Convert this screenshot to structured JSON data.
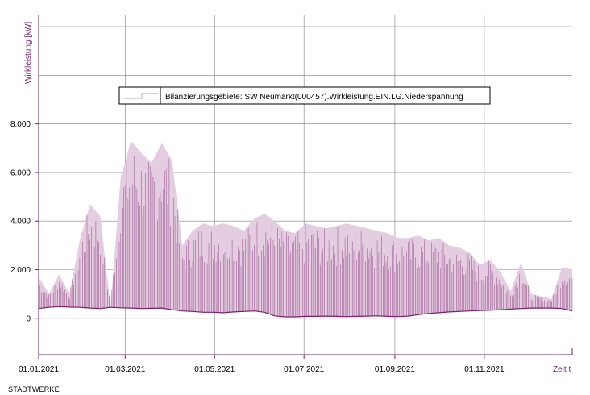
{
  "footer": {
    "text": "STADTWERKE"
  },
  "chart_data": {
    "type": "area",
    "title": "",
    "ylabel": "Wirkleistung [kW]",
    "xlabel": "Zeit t",
    "ylim": [
      -1500,
      12500
    ],
    "xlim": [
      "2021-01-01",
      "2021-12-31"
    ],
    "grid": true,
    "legend_position": "top-center",
    "y_ticks": [
      0,
      2000,
      4000,
      6000,
      8000
    ],
    "y_tick_labels": [
      "0",
      "2.000",
      "4.000",
      "6.000",
      "8.000"
    ],
    "x_ticks": [
      "2021-01-01",
      "2021-03-01",
      "2021-05-01",
      "2021-07-01",
      "2021-09-01",
      "2021-11-01"
    ],
    "x_tick_labels": [
      "01.01.2021",
      "01.03.2021",
      "01.05.2021",
      "01.07.2021",
      "01.09.2021",
      "01.11.2021"
    ],
    "colors": {
      "line": "#7a1f6e",
      "fill": "#e4cde0",
      "axis": "#7a1f6e",
      "grid": "#808080"
    },
    "series": [
      {
        "name": "Bilanzierungsgebiete: SW Neumarkt(000457).Wirkleistung.EIN.LG.Niederspannung",
        "x": [
          "2021-01-01",
          "2021-01-08",
          "2021-01-15",
          "2021-01-22",
          "2021-01-29",
          "2021-02-05",
          "2021-02-12",
          "2021-02-19",
          "2021-02-26",
          "2021-03-05",
          "2021-03-12",
          "2021-03-19",
          "2021-03-26",
          "2021-04-02",
          "2021-04-09",
          "2021-04-16",
          "2021-04-23",
          "2021-04-30",
          "2021-05-07",
          "2021-05-14",
          "2021-05-21",
          "2021-05-28",
          "2021-06-04",
          "2021-06-11",
          "2021-06-18",
          "2021-06-25",
          "2021-07-02",
          "2021-07-09",
          "2021-07-16",
          "2021-07-23",
          "2021-07-30",
          "2021-08-06",
          "2021-08-13",
          "2021-08-20",
          "2021-08-27",
          "2021-09-03",
          "2021-09-10",
          "2021-09-17",
          "2021-09-24",
          "2021-10-01",
          "2021-10-08",
          "2021-10-15",
          "2021-10-22",
          "2021-10-29",
          "2021-11-05",
          "2021-11-12",
          "2021-11-19",
          "2021-11-26",
          "2021-12-03",
          "2021-12-10",
          "2021-12-17",
          "2021-12-24",
          "2021-12-31"
        ],
        "max": [
          1700,
          1000,
          1800,
          1000,
          3200,
          4700,
          4200,
          500,
          5800,
          7300,
          6800,
          6400,
          7200,
          6500,
          3000,
          3600,
          3900,
          3800,
          3900,
          3800,
          3600,
          4100,
          4300,
          4000,
          3600,
          3500,
          3900,
          3800,
          3700,
          3800,
          3900,
          3800,
          3700,
          3600,
          3500,
          3300,
          3300,
          3400,
          3200,
          3300,
          3000,
          2900,
          2700,
          2200,
          2400,
          1900,
          1100,
          2300,
          1000,
          900,
          800,
          2100,
          2000
        ],
        "min": [
          400,
          450,
          480,
          460,
          450,
          420,
          400,
          450,
          430,
          420,
          400,
          410,
          420,
          350,
          300,
          280,
          250,
          250,
          230,
          260,
          280,
          300,
          250,
          100,
          60,
          60,
          80,
          80,
          90,
          80,
          70,
          80,
          90,
          100,
          80,
          70,
          90,
          150,
          200,
          230,
          260,
          280,
          300,
          320,
          330,
          350,
          380,
          400,
          420,
          420,
          420,
          400,
          300
        ]
      }
    ]
  }
}
